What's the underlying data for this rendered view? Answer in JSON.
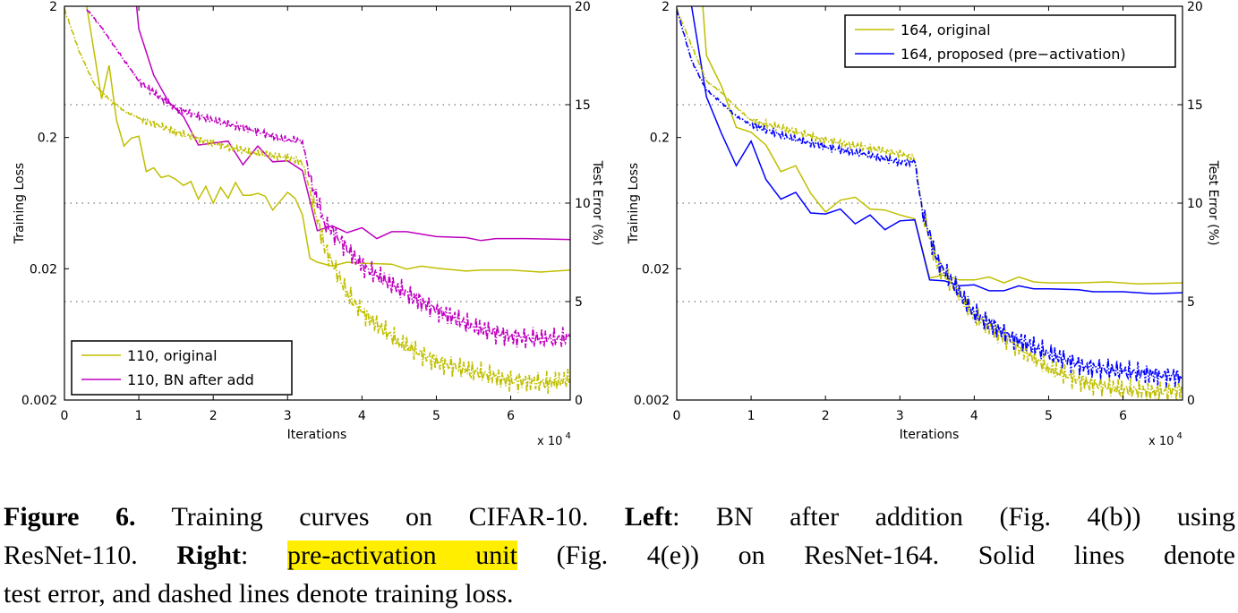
{
  "colors": {
    "yellow": "#bfbf00",
    "magenta": "#bf00bf",
    "blue": "#0000ff"
  },
  "chart_data": [
    {
      "type": "line",
      "xlabel": "Iterations",
      "x_multiplier": "x 10^4",
      "x_multiplier_base": "x 10",
      "x_multiplier_exp": "4",
      "xlim": [
        0,
        6.8
      ],
      "xticks": [
        "0",
        "1",
        "2",
        "3",
        "4",
        "5",
        "6"
      ],
      "ylabel_left": "Training Loss",
      "ylim_left": [
        0.002,
        2
      ],
      "yscale_left": "log",
      "yticks_left": [
        "2",
        "0.2",
        "0.02",
        "0.002"
      ],
      "ylabel_right": "Test Error (%)",
      "ylim_right": [
        0,
        20
      ],
      "yticks_right": [
        "20",
        "15",
        "10",
        "5",
        "0"
      ],
      "grid": "dotted horizontal at 5, 10, 15",
      "legend_position": "bottom-left",
      "legend": [
        {
          "label": "110, original",
          "color": "#bfbf00"
        },
        {
          "label": "110, BN after add",
          "color": "#bf00bf"
        }
      ],
      "series": [
        {
          "name": "110, original",
          "kind": "test error (solid)",
          "axis": "right",
          "color": "#bfbf00",
          "x": [
            0.3,
            0.5,
            0.6,
            0.7,
            0.8,
            0.9,
            1.0,
            1.1,
            1.2,
            1.3,
            1.4,
            1.5,
            1.6,
            1.7,
            1.8,
            1.9,
            2.0,
            2.1,
            2.2,
            2.3,
            2.4,
            2.5,
            2.6,
            2.7,
            2.8,
            2.9,
            3.0,
            3.1,
            3.2,
            3.3,
            3.4,
            3.6,
            3.8,
            4.0,
            4.4,
            4.6,
            4.8,
            5.0,
            5.4,
            5.6,
            6.0,
            6.4,
            6.8
          ],
          "y": [
            20,
            15.3,
            17.0,
            14.2,
            12.9,
            13.3,
            13.4,
            11.6,
            11.8,
            11.3,
            11.4,
            11.2,
            10.9,
            11.1,
            10.2,
            10.85,
            10.0,
            10.8,
            10.25,
            11.05,
            10.4,
            10.4,
            10.5,
            10.35,
            9.65,
            10.1,
            10.55,
            10.25,
            9.4,
            7.2,
            7.0,
            6.8,
            7.0,
            6.95,
            6.9,
            6.65,
            6.8,
            6.7,
            6.55,
            6.6,
            6.6,
            6.5,
            6.6
          ]
        },
        {
          "name": "110, BN after add",
          "kind": "test error (solid)",
          "axis": "right",
          "color": "#bf00bf",
          "x": [
            0.97,
            1.0,
            1.2,
            1.4,
            1.6,
            1.8,
            2.0,
            2.2,
            2.4,
            2.6,
            2.8,
            3.0,
            3.2,
            3.4,
            3.6,
            3.8,
            4.0,
            4.2,
            4.4,
            4.6,
            5.0,
            5.4,
            5.6,
            5.8,
            6.2,
            6.8
          ],
          "y": [
            20,
            18.85,
            16.5,
            15.15,
            14.4,
            12.95,
            13.05,
            13.15,
            11.95,
            12.9,
            12.1,
            12.15,
            11.65,
            8.6,
            8.85,
            8.5,
            8.75,
            8.2,
            8.55,
            8.55,
            8.3,
            8.25,
            8.1,
            8.2,
            8.2,
            8.15
          ]
        },
        {
          "name": "110, original",
          "kind": "training loss (dashed)",
          "axis": "left",
          "color": "#bfbf00",
          "x": [
            0,
            0.2,
            0.4,
            0.6,
            0.8,
            1.0,
            1.5,
            2.0,
            2.5,
            3.0,
            3.2,
            3.3,
            3.5,
            3.8,
            4.0,
            4.5,
            5.0,
            5.5,
            6.0,
            6.5,
            6.8
          ],
          "y": [
            1.9,
            0.905,
            0.51,
            0.39,
            0.32,
            0.28,
            0.22,
            0.18,
            0.155,
            0.14,
            0.13,
            0.078,
            0.029,
            0.013,
            0.0093,
            0.0055,
            0.0039,
            0.0033,
            0.0028,
            0.0027,
            0.0029
          ]
        },
        {
          "name": "110, BN after add",
          "kind": "training loss (dashed)",
          "axis": "left",
          "color": "#bf00bf",
          "x": [
            0.3,
            0.5,
            0.8,
            1.0,
            1.2,
            1.5,
            2.0,
            2.5,
            3.0,
            3.2,
            3.3,
            3.5,
            4.0,
            4.5,
            5.0,
            5.5,
            6.0,
            6.5,
            6.8
          ],
          "y": [
            1.9,
            1.37,
            0.78,
            0.54,
            0.44,
            0.33,
            0.27,
            0.23,
            0.19,
            0.19,
            0.098,
            0.045,
            0.021,
            0.014,
            0.0097,
            0.0072,
            0.0061,
            0.0058,
            0.006
          ]
        }
      ]
    },
    {
      "type": "line",
      "xlabel": "Iterations",
      "x_multiplier": "x 10^4",
      "x_multiplier_base": "x 10",
      "x_multiplier_exp": "4",
      "xlim": [
        0,
        6.8
      ],
      "xticks": [
        "0",
        "1",
        "2",
        "3",
        "4",
        "5",
        "6"
      ],
      "ylabel_left": "Training Loss",
      "ylim_left": [
        0.002,
        2
      ],
      "yscale_left": "log",
      "yticks_left": [
        "2",
        "0.2",
        "0.02",
        "0.002"
      ],
      "ylabel_right": "Test Error (%)",
      "ylim_right": [
        0,
        20
      ],
      "yticks_right": [
        "20",
        "15",
        "10",
        "5",
        "0"
      ],
      "grid": "dotted horizontal at 5, 10, 15",
      "legend_position": "top-right",
      "legend": [
        {
          "label": "164, original",
          "color": "#bfbf00"
        },
        {
          "label": "164, proposed (pre−activation)",
          "color": "#0000ff"
        }
      ],
      "series": [
        {
          "name": "164, original",
          "kind": "test error (solid)",
          "axis": "right",
          "color": "#bfbf00",
          "x": [
            0.35,
            0.4,
            0.6,
            0.8,
            1.0,
            1.2,
            1.4,
            1.6,
            1.8,
            2.0,
            2.2,
            2.4,
            2.6,
            2.8,
            3.0,
            3.2,
            3.4,
            3.6,
            3.8,
            4.0,
            4.2,
            4.4,
            4.6,
            4.8,
            5.0,
            5.4,
            5.8,
            6.2,
            6.8
          ],
          "y": [
            20,
            17.5,
            15.95,
            13.85,
            13.6,
            12.95,
            11.6,
            11.9,
            10.5,
            9.55,
            10.15,
            10.3,
            9.7,
            9.65,
            9.4,
            9.2,
            6.2,
            6.35,
            6.1,
            6.1,
            6.25,
            5.95,
            6.25,
            6.0,
            5.95,
            5.95,
            6.0,
            5.9,
            5.95
          ]
        },
        {
          "name": "164, proposed (pre−activation)",
          "kind": "test error (solid)",
          "axis": "right",
          "color": "#0000ff",
          "x": [
            0.2,
            0.4,
            0.6,
            0.8,
            1.0,
            1.2,
            1.4,
            1.6,
            1.8,
            2.0,
            2.2,
            2.4,
            2.6,
            2.8,
            3.0,
            3.2,
            3.4,
            3.6,
            3.8,
            4.0,
            4.2,
            4.4,
            4.6,
            4.8,
            5.0,
            5.4,
            5.6,
            6.0,
            6.4,
            6.8
          ],
          "y": [
            20,
            15.4,
            13.55,
            11.9,
            13.15,
            11.2,
            10.2,
            10.55,
            9.5,
            9.45,
            9.7,
            8.95,
            9.4,
            8.65,
            9.1,
            9.15,
            6.1,
            6.05,
            5.8,
            5.85,
            5.55,
            5.55,
            5.8,
            5.65,
            5.65,
            5.6,
            5.5,
            5.5,
            5.4,
            5.45
          ]
        },
        {
          "name": "164, original",
          "kind": "training loss (dashed)",
          "axis": "left",
          "color": "#bfbf00",
          "x": [
            0,
            0.2,
            0.4,
            0.6,
            0.8,
            1.0,
            1.5,
            2.0,
            2.5,
            3.0,
            3.2,
            3.3,
            3.5,
            4.0,
            4.5,
            5.0,
            5.5,
            6.0,
            6.5,
            6.8
          ],
          "y": [
            1.9,
            1.0,
            0.54,
            0.44,
            0.34,
            0.27,
            0.23,
            0.19,
            0.17,
            0.15,
            0.14,
            0.056,
            0.022,
            0.0087,
            0.0055,
            0.0035,
            0.0027,
            0.0024,
            0.0023,
            0.0024
          ]
        },
        {
          "name": "164, proposed (pre−activation)",
          "kind": "training loss (dashed)",
          "axis": "left",
          "color": "#0000ff",
          "x": [
            0,
            0.2,
            0.4,
            0.6,
            0.8,
            1.0,
            1.5,
            2.0,
            2.5,
            3.0,
            3.2,
            3.3,
            3.5,
            4.0,
            4.5,
            5.0,
            5.5,
            6.0,
            6.5,
            6.8
          ],
          "y": [
            1.9,
            0.77,
            0.46,
            0.37,
            0.29,
            0.25,
            0.2,
            0.17,
            0.15,
            0.13,
            0.13,
            0.056,
            0.023,
            0.0091,
            0.006,
            0.0045,
            0.0036,
            0.0033,
            0.0031,
            0.003
          ]
        }
      ]
    }
  ],
  "caption": {
    "figure_label": "Figure 6.",
    "line1_a": " Training curves on CIFAR-10. ",
    "left_label": "Left",
    "line1_b": ": BN after addition (Fig. 4(b)) using",
    "line2_a": "ResNet-110. ",
    "right_label": "Right",
    "line2_b": ": ",
    "highlight": "pre-activation unit",
    "line2_c": " (Fig. 4(e)) on ResNet-164. Solid lines denote",
    "line3": "test error, and dashed lines denote training loss."
  }
}
